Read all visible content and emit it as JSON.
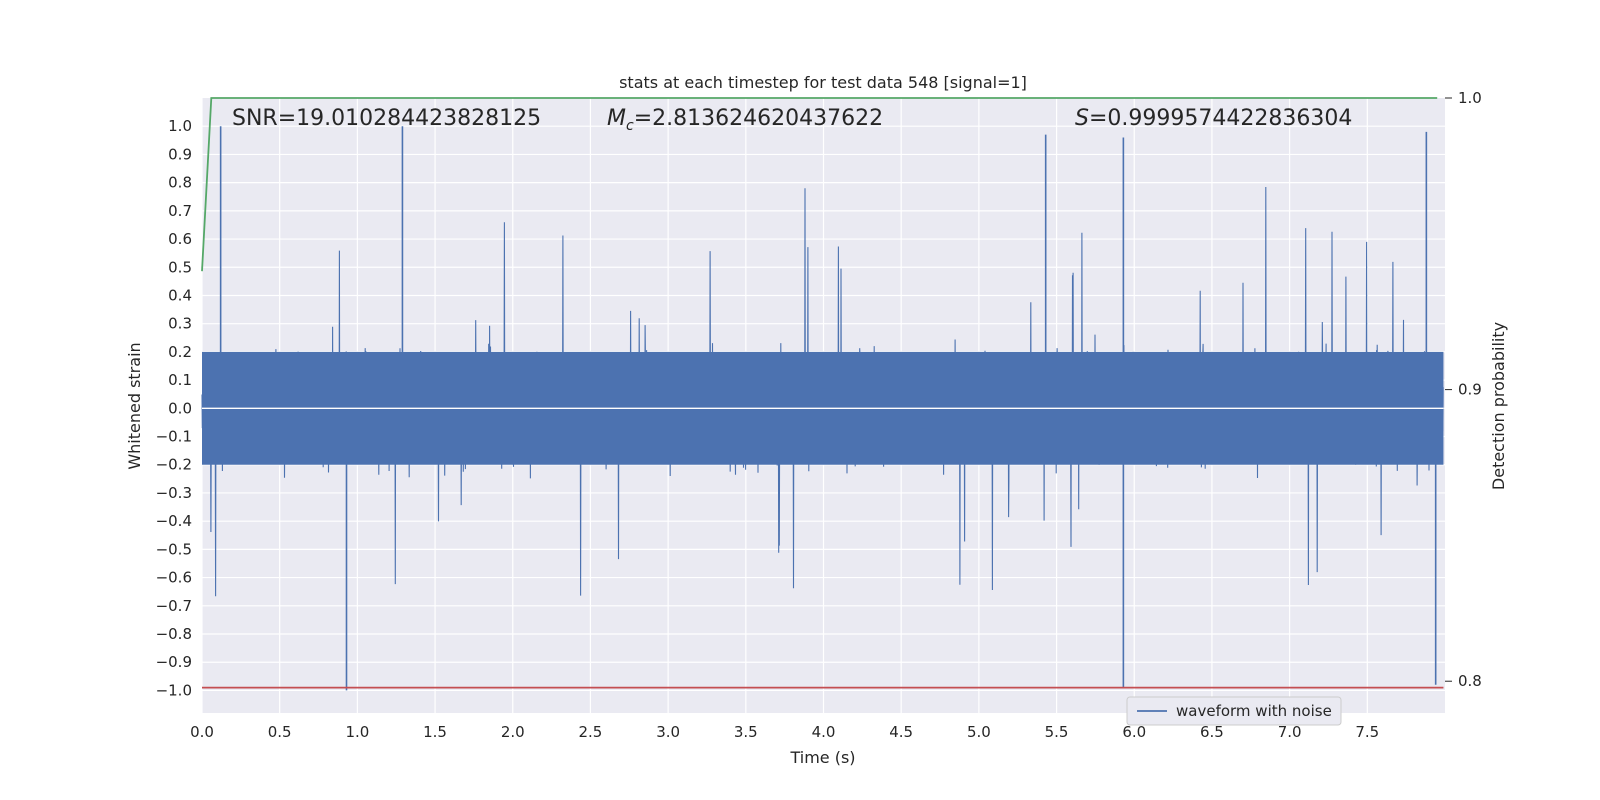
{
  "chart_data": {
    "type": "line",
    "title": "stats at each timestep for test data 548 [signal=1]",
    "xlabel": "Time (s)",
    "ylabel": "Whitened strain",
    "ylabel_right": "Detection probability",
    "xlim": [
      0.0,
      8.0
    ],
    "ylim": [
      -1.08,
      1.1
    ],
    "ylim_right": [
      0.7891,
      1.0
    ],
    "x_ticks": [
      "0.0",
      "0.5",
      "1.0",
      "1.5",
      "2.0",
      "2.5",
      "3.0",
      "3.5",
      "4.0",
      "4.5",
      "5.0",
      "5.5",
      "6.0",
      "6.5",
      "7.0",
      "7.5"
    ],
    "y_ticks": [
      "1.0",
      "0.9",
      "0.8",
      "0.7",
      "0.6",
      "0.5",
      "0.4",
      "0.3",
      "0.2",
      "0.1",
      "0.0",
      "−0.1",
      "−0.2",
      "−0.3",
      "−0.4",
      "−0.5",
      "−0.6",
      "−0.7",
      "−0.8",
      "−0.9",
      "−1.0"
    ],
    "y_ticks_right": [
      "1.0",
      "0.9",
      "0.8"
    ],
    "grid": true,
    "legend_position": "lower-center-right",
    "annotations": {
      "snr": "SNR=19.010284423828125",
      "mc_symbol": "M",
      "mc_sub": "c",
      "mc_value": "=2.813624620437622",
      "s_symbol": "S",
      "s_value": "=0.9999574422836304"
    },
    "series": [
      {
        "name": "waveform with noise",
        "axis": "left",
        "color": "#4c72b0",
        "description_type": "dense noisy strain time series",
        "peaks": [
          {
            "x": 0.12,
            "y": 1.0
          },
          {
            "x": 0.93,
            "y": -1.0
          },
          {
            "x": 1.29,
            "y": 1.0
          },
          {
            "x": 5.43,
            "y": 0.97
          },
          {
            "x": 5.93,
            "y": 0.96
          },
          {
            "x": 5.93,
            "y": -0.99
          },
          {
            "x": 7.88,
            "y": 0.98
          },
          {
            "x": 7.94,
            "y": -0.98
          }
        ]
      },
      {
        "axis": "right",
        "color": "#55a868",
        "x": [
          0.0,
          0.06,
          7.95
        ],
        "y": [
          0.9406,
          1.0,
          1.0
        ]
      },
      {
        "axis": "left",
        "color": "#c44e52",
        "x": [
          0.0,
          7.99
        ],
        "y": [
          -0.99,
          -0.99
        ]
      }
    ]
  }
}
